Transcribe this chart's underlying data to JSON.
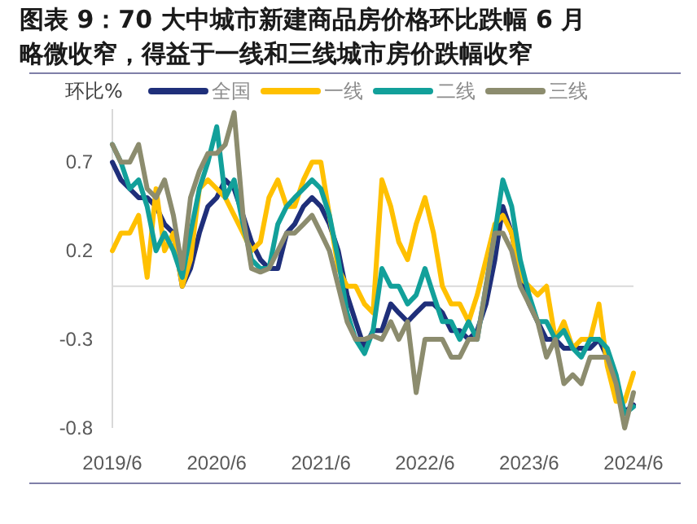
{
  "chart_data": {
    "type": "line",
    "title": "图表 9：70 大中城市新建商品房价格环比跌幅 6 月略微收窄，得益于一线和三线城市房价跌幅收窄",
    "ylabel": "环比%",
    "x": [
      "2019-06",
      "2019-07",
      "2019-08",
      "2019-09",
      "2019-10",
      "2019-11",
      "2019-12",
      "2020-01",
      "2020-02",
      "2020-03",
      "2020-04",
      "2020-05",
      "2020-06",
      "2020-07",
      "2020-08",
      "2020-09",
      "2020-10",
      "2020-11",
      "2020-12",
      "2021-01",
      "2021-02",
      "2021-03",
      "2021-04",
      "2021-05",
      "2021-06",
      "2021-07",
      "2021-08",
      "2021-09",
      "2021-10",
      "2021-11",
      "2021-12",
      "2022-01",
      "2022-02",
      "2022-03",
      "2022-04",
      "2022-05",
      "2022-06",
      "2022-07",
      "2022-08",
      "2022-09",
      "2022-10",
      "2022-11",
      "2022-12",
      "2023-01",
      "2023-02",
      "2023-03",
      "2023-04",
      "2023-05",
      "2023-06",
      "2023-07",
      "2023-08",
      "2023-09",
      "2023-10",
      "2023-11",
      "2023-12",
      "2024-01",
      "2024-02",
      "2024-03",
      "2024-04",
      "2024-05",
      "2024-06"
    ],
    "series": [
      {
        "name": "全国",
        "color": "#1f2f7a",
        "values": [
          0.7,
          0.6,
          0.55,
          0.5,
          0.5,
          0.45,
          0.35,
          0.3,
          0.0,
          0.1,
          0.3,
          0.45,
          0.5,
          0.6,
          0.55,
          0.4,
          0.25,
          0.15,
          0.1,
          0.1,
          0.3,
          0.35,
          0.45,
          0.5,
          0.45,
          0.35,
          0.2,
          -0.05,
          -0.2,
          -0.35,
          -0.25,
          -0.25,
          -0.1,
          -0.15,
          -0.2,
          -0.15,
          -0.1,
          -0.1,
          -0.15,
          -0.25,
          -0.25,
          -0.3,
          -0.25,
          -0.1,
          0.15,
          0.45,
          0.3,
          0.05,
          -0.1,
          -0.2,
          -0.3,
          -0.3,
          -0.35,
          -0.35,
          -0.35,
          -0.35,
          -0.3,
          -0.4,
          -0.55,
          -0.71,
          -0.67
        ]
      },
      {
        "name": "一线",
        "color": "#ffc000",
        "values": [
          0.2,
          0.3,
          0.3,
          0.4,
          0.05,
          0.55,
          0.2,
          0.3,
          0.0,
          0.15,
          0.55,
          0.6,
          0.55,
          0.5,
          0.4,
          0.3,
          0.2,
          0.25,
          0.5,
          0.6,
          0.45,
          0.45,
          0.6,
          0.7,
          0.7,
          0.4,
          0.1,
          0.0,
          0.0,
          -0.1,
          -0.15,
          0.6,
          0.45,
          0.25,
          0.15,
          0.35,
          0.5,
          0.3,
          0.0,
          -0.1,
          -0.1,
          -0.2,
          -0.05,
          0.15,
          0.35,
          0.4,
          0.3,
          0.05,
          0.0,
          -0.05,
          0.0,
          -0.3,
          -0.2,
          -0.35,
          -0.3,
          -0.3,
          -0.1,
          -0.45,
          -0.65,
          -0.65,
          -0.49
        ]
      },
      {
        "name": "二线",
        "color": "#12a09a",
        "values": [
          0.8,
          0.7,
          0.55,
          0.6,
          0.45,
          0.2,
          0.3,
          0.2,
          0.05,
          0.3,
          0.55,
          0.7,
          0.9,
          0.5,
          0.6,
          0.35,
          0.15,
          0.1,
          0.1,
          0.35,
          0.45,
          0.5,
          0.55,
          0.6,
          0.55,
          0.4,
          0.15,
          -0.15,
          -0.3,
          -0.38,
          -0.25,
          0.1,
          0.0,
          0.0,
          -0.1,
          -0.05,
          0.1,
          -0.05,
          -0.2,
          -0.2,
          -0.3,
          -0.2,
          -0.3,
          0.0,
          0.3,
          0.6,
          0.45,
          0.15,
          -0.05,
          -0.2,
          -0.2,
          -0.3,
          -0.25,
          -0.35,
          -0.4,
          -0.3,
          -0.3,
          -0.35,
          -0.5,
          -0.72,
          -0.68
        ]
      },
      {
        "name": "三线",
        "color": "#8c8c6e",
        "values": [
          0.8,
          0.7,
          0.7,
          0.8,
          0.55,
          0.5,
          0.6,
          0.4,
          0.1,
          0.5,
          0.65,
          0.75,
          0.75,
          0.8,
          0.98,
          0.4,
          0.1,
          0.08,
          0.1,
          0.2,
          0.3,
          0.3,
          0.35,
          0.4,
          0.3,
          0.2,
          0.0,
          -0.2,
          -0.3,
          -0.3,
          -0.28,
          -0.3,
          -0.2,
          -0.3,
          -0.2,
          -0.6,
          -0.3,
          -0.3,
          -0.3,
          -0.4,
          -0.4,
          -0.3,
          -0.3,
          0.0,
          0.3,
          0.3,
          0.2,
          0.0,
          -0.1,
          -0.2,
          -0.4,
          -0.3,
          -0.55,
          -0.5,
          -0.55,
          -0.4,
          -0.4,
          -0.4,
          -0.55,
          -0.8,
          -0.6
        ]
      }
    ],
    "xlim": [
      "2019-06",
      "2024-06"
    ],
    "xticks": [
      {
        "value": "2019-06",
        "label": "2019/6"
      },
      {
        "value": "2020-06",
        "label": "2020/6"
      },
      {
        "value": "2021-06",
        "label": "2021/6"
      },
      {
        "value": "2022-06",
        "label": "2022/6"
      },
      {
        "value": "2023-06",
        "label": "2023/6"
      },
      {
        "value": "2024-06",
        "label": "2024/6"
      }
    ],
    "ylim": [
      -0.8,
      1.0
    ],
    "yticks": [
      0.7,
      0.2,
      -0.3,
      -0.8
    ],
    "ref_lines": [
      {
        "axis": "y",
        "value": 0,
        "color": "#d9d9d9"
      }
    ],
    "legend": "top",
    "line_style": "solid",
    "marker": "none",
    "grid": false
  }
}
